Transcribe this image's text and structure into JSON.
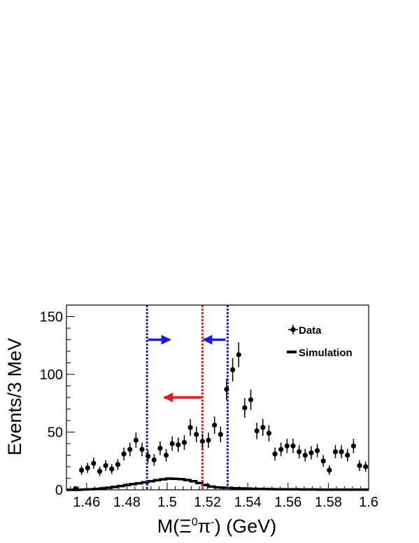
{
  "chart_data": {
    "type": "scatter",
    "xlabel": {
      "prefix": "M(",
      "sym": "Ξ",
      "sup1": "0",
      "mid": "π",
      "sup2": "-",
      "suffix": ") (GeV)"
    },
    "ylabel": "Events/3 MeV",
    "xlim": [
      1.45,
      1.6
    ],
    "ylim": [
      0,
      160
    ],
    "x_ticks": [
      {
        "value": 1.46,
        "label": "1.46"
      },
      {
        "value": 1.48,
        "label": "1.48"
      },
      {
        "value": 1.5,
        "label": "1.5"
      },
      {
        "value": 1.52,
        "label": "1.52"
      },
      {
        "value": 1.54,
        "label": "1.54"
      },
      {
        "value": 1.56,
        "label": "1.56"
      },
      {
        "value": 1.58,
        "label": "1.58"
      },
      {
        "value": 1.6,
        "label": "1.6"
      }
    ],
    "y_ticks": [
      {
        "value": 0,
        "label": "0"
      },
      {
        "value": 50,
        "label": "50"
      },
      {
        "value": 100,
        "label": "100"
      },
      {
        "value": 150,
        "label": "150"
      }
    ],
    "legend": {
      "placement": "top-right",
      "entries": [
        "Data",
        "Simulation"
      ]
    },
    "series": [
      {
        "name": "Data",
        "kind": "points_with_errors",
        "x": [
          1.4545,
          1.4575,
          1.4605,
          1.4635,
          1.4665,
          1.4695,
          1.4725,
          1.4755,
          1.4785,
          1.4815,
          1.4845,
          1.4875,
          1.4905,
          1.4935,
          1.4965,
          1.4995,
          1.5025,
          1.5055,
          1.5085,
          1.5115,
          1.5145,
          1.5175,
          1.5205,
          1.5235,
          1.5265,
          1.5295,
          1.5325,
          1.5355,
          1.5385,
          1.5415,
          1.5445,
          1.5475,
          1.5505,
          1.5535,
          1.5565,
          1.5595,
          1.5625,
          1.5655,
          1.5685,
          1.5715,
          1.5745,
          1.5775,
          1.5805,
          1.5835,
          1.5865,
          1.5895,
          1.5925,
          1.5955,
          1.5985
        ],
        "y": [
          1,
          17,
          19,
          23,
          16,
          21,
          18,
          22,
          31,
          35,
          43,
          35,
          29,
          26,
          36,
          30,
          40,
          39,
          41,
          54,
          48,
          42,
          43,
          56,
          48,
          87,
          104,
          117,
          71,
          78,
          51,
          54,
          49,
          31,
          35,
          38,
          38,
          33,
          30,
          32,
          34,
          25,
          17,
          33,
          33,
          30,
          38,
          21,
          20
        ],
        "err": [
          1,
          4.1,
          4.4,
          4.8,
          4,
          4.6,
          4.2,
          4.7,
          5.6,
          5.9,
          6.6,
          5.9,
          5.4,
          5.1,
          6,
          5.5,
          6.3,
          6.2,
          6.4,
          7.3,
          6.9,
          6.5,
          6.6,
          7.5,
          6.9,
          9.3,
          10.2,
          10.8,
          8.4,
          8.8,
          7.1,
          7.3,
          7,
          5.6,
          5.9,
          6.2,
          6.2,
          5.7,
          5.5,
          5.7,
          5.8,
          5,
          4.1,
          5.7,
          5.7,
          5.5,
          6.2,
          4.6,
          4.5
        ]
      },
      {
        "name": "Simulation",
        "kind": "step_histogram",
        "bin_edges": [
          1.45,
          1.4545,
          1.4575,
          1.4605,
          1.4635,
          1.4665,
          1.4695,
          1.4725,
          1.4755,
          1.4785,
          1.4815,
          1.4845,
          1.4875,
          1.4905,
          1.4935,
          1.4965,
          1.4995,
          1.5025,
          1.5055,
          1.5085,
          1.5115,
          1.5145,
          1.5175,
          1.5205,
          1.5235,
          1.5265,
          1.5295,
          1.5325,
          1.5355,
          1.5385,
          1.5415,
          1.5445,
          1.5475,
          1.5505,
          1.5535,
          1.5565,
          1.5595,
          1.5625,
          1.5655,
          1.5685,
          1.5715,
          1.5745,
          1.5775,
          1.5805,
          1.5835,
          1.5865,
          1.5895,
          1.5925,
          1.5955,
          1.5985,
          1.6
        ],
        "values": [
          0,
          0,
          0.3,
          0.5,
          0.8,
          1.2,
          1.8,
          2.5,
          3.3,
          4.1,
          4.9,
          5.7,
          6.5,
          7.4,
          8.3,
          9.1,
          9.7,
          9.6,
          9.2,
          8.5,
          7.4,
          5.9,
          4.2,
          2.8,
          2.1,
          1.8,
          1.6,
          1.4,
          1.2,
          1.1,
          0.9,
          0.8,
          0.7,
          0.6,
          0.5,
          0.5,
          0.4,
          0.4,
          0.3,
          0.3,
          0.3,
          0.2,
          0.2,
          0.2,
          0.2,
          0.1,
          0.1,
          0.1,
          0.1,
          0.1
        ]
      }
    ],
    "cut_lines": [
      {
        "x": 1.49,
        "color": "#1a1aee"
      },
      {
        "x": 1.53,
        "color": "#1a1aee"
      },
      {
        "x": 1.5175,
        "color": "#ee1a1a"
      }
    ],
    "arrows": [
      {
        "y": 130,
        "x_from": 1.4905,
        "x_to": 1.5015,
        "color": "#1a1aee"
      },
      {
        "y": 130,
        "x_from": 1.529,
        "x_to": 1.518,
        "color": "#1a1aee"
      },
      {
        "y": 80,
        "x_from": 1.517,
        "x_to": 1.4985,
        "color": "#ee1a1a"
      }
    ]
  }
}
